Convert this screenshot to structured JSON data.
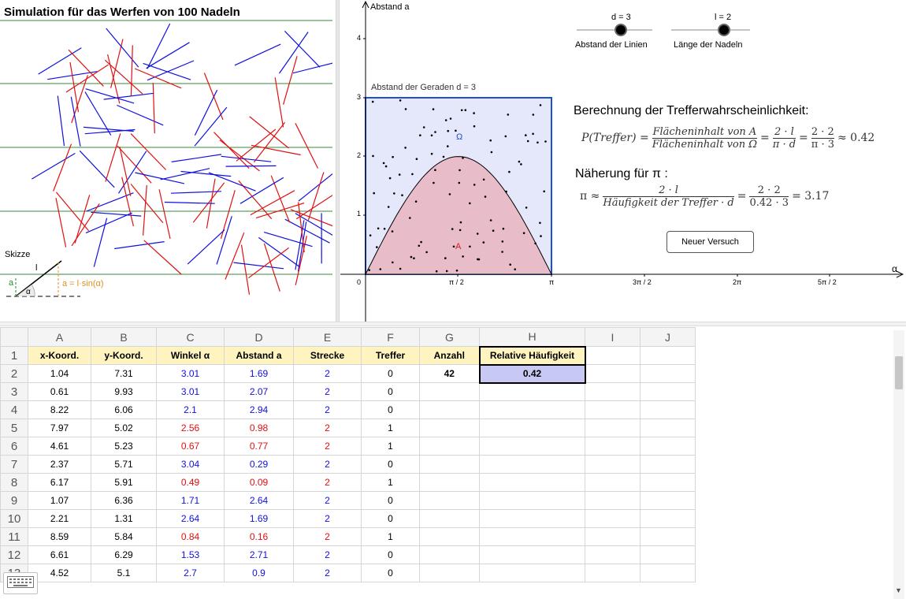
{
  "simulation": {
    "title": "Simulation für das Werfen von 100 Nadeln",
    "sketch_label": "Skizze",
    "sketch_a": "a",
    "sketch_l": "l",
    "sketch_alpha": "α",
    "sketch_formula": "a = l·sin(α)"
  },
  "graph": {
    "y_axis_label": "Abstand a",
    "x_axis_label": "α",
    "y_ticks": [
      "1",
      "2",
      "3",
      "4"
    ],
    "x_ticks": [
      "0",
      "π / 2",
      "π",
      "3π / 2",
      "2π",
      "5π / 2"
    ],
    "rect_label": "Abstand der Geraden d = 3",
    "omega_label": "Ω",
    "region_label": "A"
  },
  "sliders": [
    {
      "value_label": "d = 3",
      "caption": "Abstand der Linien"
    },
    {
      "value_label": "l = 2",
      "caption": "Länge der Nadeln"
    }
  ],
  "formulas": {
    "title1": "Berechnung der Trefferwahrscheinlichkeit:",
    "p_lhs": "P(Treffer) =",
    "p_num1": "Flächeninhalt von A",
    "p_den1": "Flächeninhalt von Ω",
    "eq": "=",
    "p_num2": "2 · l",
    "p_den2": "π · d",
    "p_num3": "2 · 2",
    "p_den3": "π · 3",
    "p_result": "≈ 0.42",
    "title2": "Näherung für  π :",
    "pi_lhs": "π ≈",
    "pi_num1": "2 · l",
    "pi_den1": "Häufigkeit der Treffer · d",
    "pi_num2": "2 · 2",
    "pi_den2": "0.42 · 3",
    "pi_result": "= 3.17"
  },
  "button": {
    "label": "Neuer Versuch"
  },
  "sheet": {
    "columns": [
      "A",
      "B",
      "C",
      "D",
      "E",
      "F",
      "G",
      "H",
      "I",
      "J"
    ],
    "headers": [
      "x-Koord.",
      "y-Koord.",
      "Winkel α",
      "Abstand a",
      "Strecke",
      "Treffer",
      "Anzahl",
      "Relative Häufigkeit"
    ],
    "anzahl": "42",
    "rel_haeufigkeit": "0.42",
    "rows": [
      {
        "n": "2",
        "x": "1.04",
        "y": "7.31",
        "w": "3.01",
        "a": "1.69",
        "s": "2",
        "t": "0",
        "hit": false
      },
      {
        "n": "3",
        "x": "0.61",
        "y": "9.93",
        "w": "3.01",
        "a": "2.07",
        "s": "2",
        "t": "0",
        "hit": false
      },
      {
        "n": "4",
        "x": "8.22",
        "y": "6.06",
        "w": "2.1",
        "a": "2.94",
        "s": "2",
        "t": "0",
        "hit": false
      },
      {
        "n": "5",
        "x": "7.97",
        "y": "5.02",
        "w": "2.56",
        "a": "0.98",
        "s": "2",
        "t": "1",
        "hit": true
      },
      {
        "n": "6",
        "x": "4.61",
        "y": "5.23",
        "w": "0.67",
        "a": "0.77",
        "s": "2",
        "t": "1",
        "hit": true
      },
      {
        "n": "7",
        "x": "2.37",
        "y": "5.71",
        "w": "3.04",
        "a": "0.29",
        "s": "2",
        "t": "0",
        "hit": false
      },
      {
        "n": "8",
        "x": "6.17",
        "y": "5.91",
        "w": "0.49",
        "a": "0.09",
        "s": "2",
        "t": "1",
        "hit": true
      },
      {
        "n": "9",
        "x": "1.07",
        "y": "6.36",
        "w": "1.71",
        "a": "2.64",
        "s": "2",
        "t": "0",
        "hit": false
      },
      {
        "n": "10",
        "x": "2.21",
        "y": "1.31",
        "w": "2.64",
        "a": "1.69",
        "s": "2",
        "t": "0",
        "hit": false
      },
      {
        "n": "11",
        "x": "8.59",
        "y": "5.84",
        "w": "0.84",
        "a": "0.16",
        "s": "2",
        "t": "1",
        "hit": true
      },
      {
        "n": "12",
        "x": "6.61",
        "y": "6.29",
        "w": "1.53",
        "a": "2.71",
        "s": "2",
        "t": "0",
        "hit": false
      },
      {
        "n": "13",
        "x": "4.52",
        "y": "5.1",
        "w": "2.7",
        "a": "0.9",
        "s": "2",
        "t": "0",
        "hit": false
      }
    ]
  },
  "colors": {
    "hit": "#e01010",
    "miss": "#1010e0",
    "line": "#3a8a3a",
    "omega_fill": "#e4e8fa",
    "a_fill": "#e8bcc8",
    "header_bg": "#fff4c0"
  }
}
